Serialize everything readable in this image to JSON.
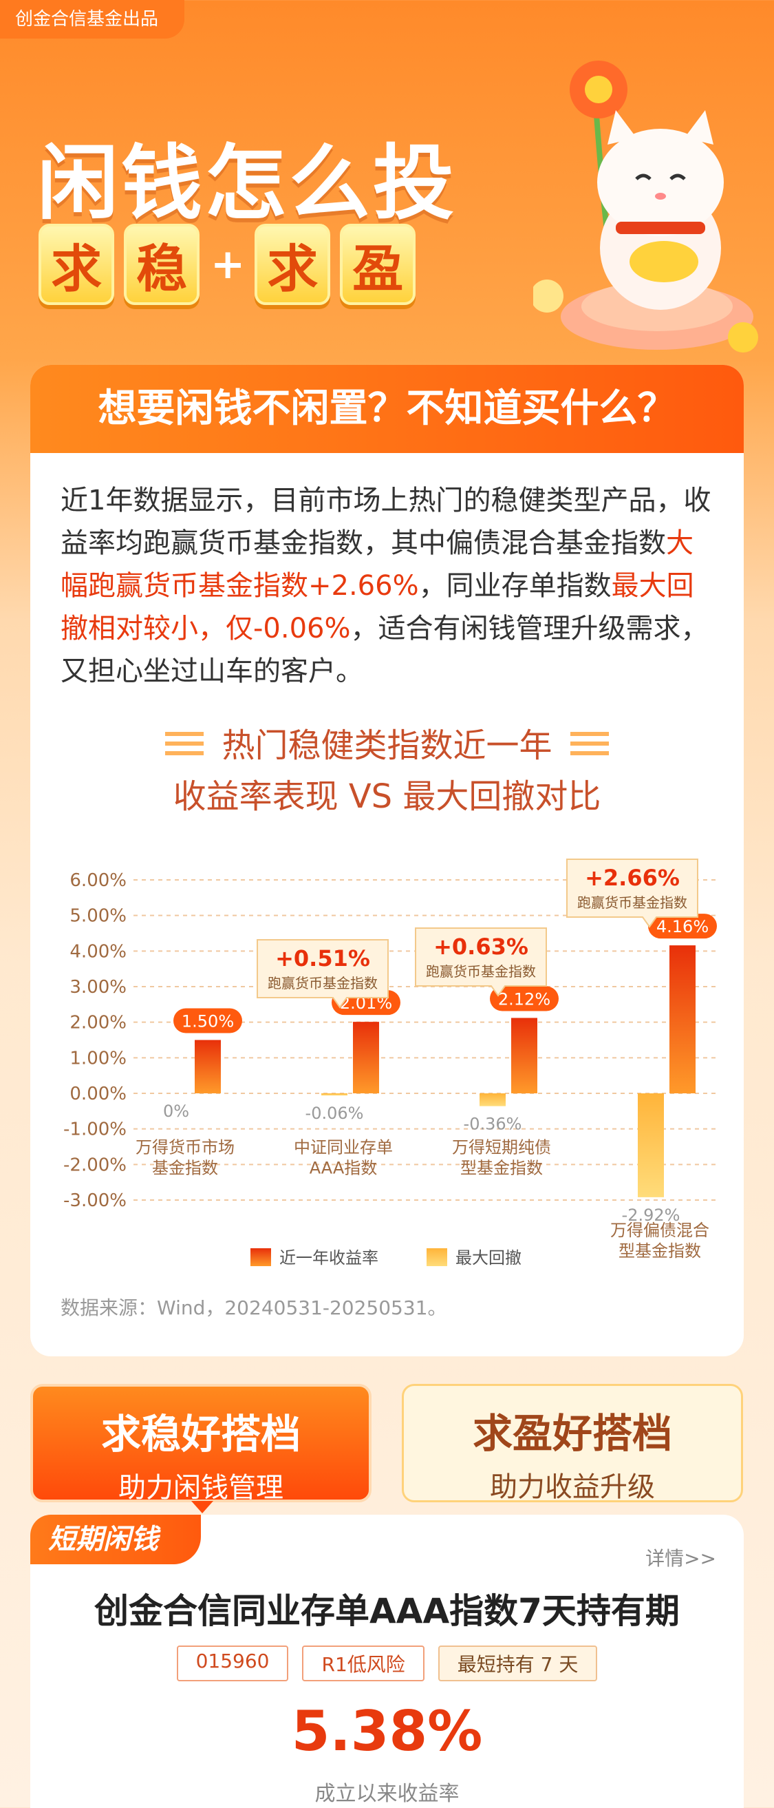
{
  "publisher": "创金合信基金出品",
  "hero": {
    "title": "闲钱怎么投",
    "tiles": [
      "求",
      "稳",
      "求",
      "盈"
    ],
    "plus": "+"
  },
  "card1": {
    "heading": "想要闲钱不闲置？不知道买什么？",
    "intro": {
      "p1": "近1年数据显示，目前市场上热门的稳健类型产品，收益率均跑赢货币基金指数，其中偏债混合基金指数",
      "hl1": "大幅跑赢货币基金指数+2.66%",
      "p2": "，同业存单指数",
      "hl2": "最大回撤相对较小，仅-0.06%",
      "p3": "，适合有闲钱管理升级需求，又担心坐过山车的客户。"
    },
    "chart_heading_line1": "热门稳健类指数近一年",
    "chart_heading_line2": "收益率表现 VS 最大回撤对比",
    "source": "数据来源：Wind，20240531-20250531。"
  },
  "chart_data": {
    "type": "bar",
    "categories": [
      "万得货币市场基金指数",
      "中证同业存单AAA指数",
      "万得短期纯债型基金指数",
      "万得偏债混合型基金指数"
    ],
    "category_lines": [
      [
        "万得货币市场",
        "基金指数"
      ],
      [
        "中证同业存单",
        "AAA指数"
      ],
      [
        "万得短期纯债",
        "型基金指数"
      ],
      [
        "万得偏债混合",
        "型基金指数"
      ]
    ],
    "series": [
      {
        "name": "近一年收益率",
        "values": [
          1.5,
          2.01,
          2.12,
          4.16
        ],
        "labels": [
          "1.50%",
          "2.01%",
          "2.12%",
          "4.16%"
        ]
      },
      {
        "name": "最大回撤",
        "values": [
          0,
          -0.06,
          -0.36,
          -2.92
        ],
        "labels": [
          "0%",
          "-0.06%",
          "-0.36%",
          "-2.92%"
        ]
      }
    ],
    "callouts": [
      {
        "category": 1,
        "value": "+0.51%",
        "text": "跑赢货币基金指数"
      },
      {
        "category": 2,
        "value": "+0.63%",
        "text": "跑赢货币基金指数"
      },
      {
        "category": 3,
        "value": "+2.66%",
        "text": "跑赢货币基金指数"
      }
    ],
    "yticks": [
      "6.00%",
      "5.00%",
      "4.00%",
      "3.00%",
      "2.00%",
      "1.00%",
      "0.00%",
      "-1.00%",
      "-2.00%",
      "-3.00%"
    ],
    "ylim": [
      -3,
      6
    ],
    "grid": true,
    "legend": "bottom",
    "colors": {
      "return": "#ff4a0e",
      "drawdown": "#ffc24a"
    }
  },
  "tabs": [
    {
      "title": "求稳好搭档",
      "subtitle": "助力闲钱管理"
    },
    {
      "title": "求盈好搭档",
      "subtitle": "助力收益升级"
    }
  ],
  "product": {
    "badge": "短期闲钱",
    "detail": "详情>>",
    "name": "创金合信同业存单AAA指数7天持有期",
    "tags": [
      "015960",
      "R1低风险",
      "最短持有 7 天"
    ],
    "rate": "5.38%",
    "rate_label": "成立以来收益率"
  }
}
